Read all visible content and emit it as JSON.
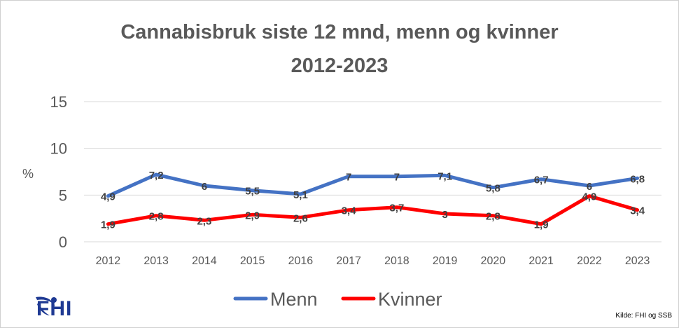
{
  "title": {
    "line1": "Cannabisbruk siste 12 mnd, menn og kvinner",
    "line2": "2012-2023"
  },
  "chart_data": {
    "type": "line",
    "title": "Cannabisbruk siste 12 mnd, menn og kvinner 2012-2023",
    "ylabel": "%",
    "xlabel": "",
    "ylim": [
      0,
      15
    ],
    "yticks": [
      "0",
      "5",
      "10",
      "15"
    ],
    "categories": [
      "2012",
      "2013",
      "2014",
      "2015",
      "2016",
      "2017",
      "2018",
      "2019",
      "2020",
      "2021",
      "2022",
      "2023"
    ],
    "series": [
      {
        "name": "Menn",
        "color": "#4472c4",
        "values": [
          4.9,
          7.2,
          6,
          5.5,
          5.1,
          7,
          7,
          7.1,
          5.8,
          6.7,
          6,
          6.8
        ],
        "labels": [
          "4,9",
          "7,2",
          "6",
          "5,5",
          "5,1",
          "7",
          "7",
          "7,1",
          "5,8",
          "6,7",
          "6",
          "6,8"
        ]
      },
      {
        "name": "Kvinner",
        "color": "#ff0000",
        "values": [
          1.9,
          2.8,
          2.3,
          2.9,
          2.6,
          3.4,
          3.7,
          3,
          2.8,
          1.9,
          4.9,
          3.4
        ],
        "labels": [
          "1,9",
          "2,8",
          "2,3",
          "2,9",
          "2,6",
          "3,4",
          "3,7",
          "3",
          "2,8",
          "1,9",
          "4,9",
          "3,4"
        ]
      }
    ],
    "grid": true,
    "legend": "bottom"
  },
  "logo": {
    "text": "FHI",
    "icon": "fhi-logo-icon"
  },
  "source": "Kilde: FHI og SSB"
}
